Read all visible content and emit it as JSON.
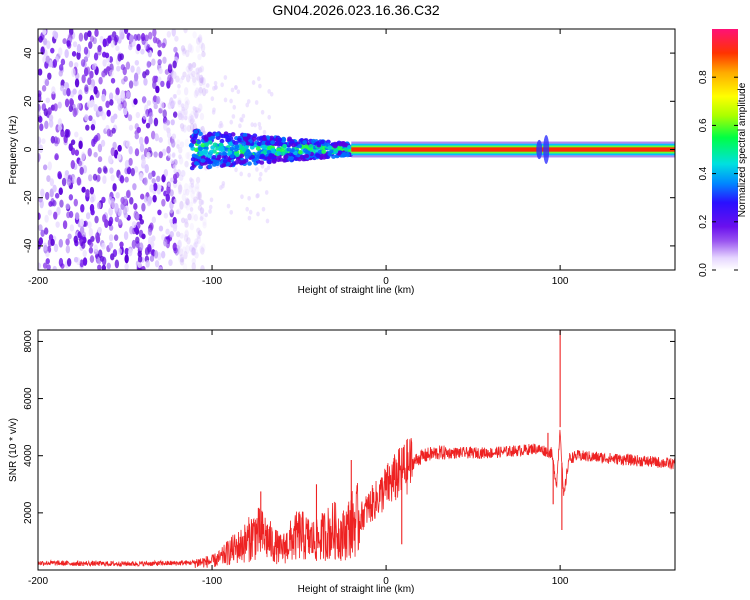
{
  "figure": {
    "title": "GN04.2026.023.16.36.C32"
  },
  "chart_data": [
    {
      "type": "heatmap",
      "name": "spectrogram",
      "xlabel": "Height of straight line (km)",
      "ylabel": "Frequency (Hz)",
      "xlim": [
        -200,
        166
      ],
      "ylim": [
        -50,
        50
      ],
      "xticks": [
        -200,
        -100,
        0,
        100
      ],
      "yticks": [
        40,
        20,
        0,
        -20,
        -40
      ],
      "colorbar": {
        "label": "Normalized spectral amplitude",
        "range": [
          0,
          1
        ],
        "ticks": [
          0.0,
          0.2,
          0.4,
          0.6,
          0.8
        ]
      },
      "regions": [
        {
          "description": "scattered noise",
          "x_range": [
            -200,
            -112
          ],
          "freq_range": [
            -50,
            50
          ],
          "level": 0.15
        },
        {
          "description": "broadened signal",
          "x_range": [
            -112,
            -20
          ],
          "freq_range": [
            -8,
            8
          ],
          "level": 0.5
        },
        {
          "description": "narrow carrier line",
          "x_range": [
            -20,
            166
          ],
          "freq_center": 0,
          "freq_halfwidth": 1.5,
          "level": 0.95
        }
      ]
    },
    {
      "type": "line",
      "name": "snr",
      "xlabel": "Height of straight line (km)",
      "ylabel": "SNR (10 * v/v)",
      "xlim": [
        -200,
        166
      ],
      "ylim": [
        0,
        8400
      ],
      "xticks": [
        -200,
        -100,
        0,
        100
      ],
      "yticks": [
        2000,
        4000,
        6000,
        8000
      ],
      "color": "#ee2222",
      "series": [
        {
          "name": "SNR",
          "x": [
            -200,
            -180,
            -160,
            -140,
            -120,
            -110,
            -100,
            -95,
            -90,
            -85,
            -80,
            -75,
            -70,
            -65,
            -60,
            -55,
            -50,
            -45,
            -40,
            -35,
            -30,
            -25,
            -20,
            -15,
            -10,
            -5,
            0,
            5,
            10,
            15,
            20,
            25,
            30,
            35,
            40,
            50,
            60,
            70,
            80,
            85,
            90,
            95,
            98,
            100,
            102,
            105,
            110,
            120,
            130,
            140,
            150,
            160,
            166
          ],
          "y": [
            250,
            230,
            220,
            220,
            240,
            260,
            300,
            420,
            650,
            800,
            1000,
            1300,
            1200,
            900,
            700,
            1000,
            1250,
            1100,
            1000,
            1250,
            1400,
            1200,
            1600,
            1800,
            2200,
            2500,
            2900,
            3200,
            3500,
            3750,
            3950,
            4050,
            4100,
            4100,
            4100,
            4100,
            4100,
            4150,
            4200,
            4250,
            4200,
            4100,
            3000,
            5000,
            2500,
            3900,
            4000,
            3950,
            3900,
            3850,
            3800,
            3750,
            3700
          ],
          "spikes": [
            {
              "x": 100,
              "y": 8400
            },
            {
              "x": 101,
              "y": 1400
            },
            {
              "x": -72,
              "y": 2750
            },
            {
              "x": -20,
              "y": 3850
            },
            {
              "x": -40,
              "y": 3000
            },
            {
              "x": 10,
              "y": 4300
            },
            {
              "x": 9,
              "y": 900
            },
            {
              "x": 93,
              "y": 4800
            },
            {
              "x": 96,
              "y": 2300
            }
          ]
        }
      ]
    }
  ]
}
